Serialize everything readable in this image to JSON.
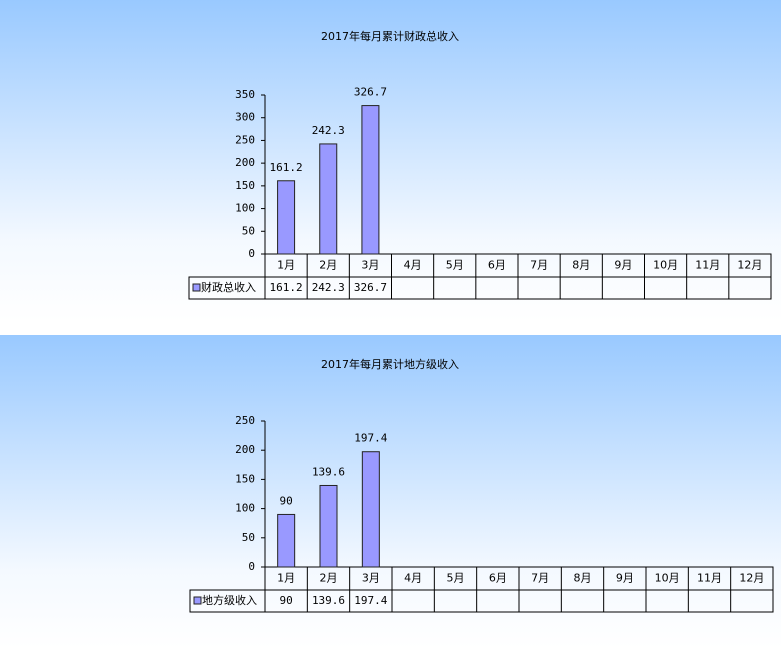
{
  "chart_data": [
    {
      "type": "bar",
      "title": "2017年每月累计财政总收入",
      "categories": [
        "1月",
        "2月",
        "3月",
        "4月",
        "5月",
        "6月",
        "7月",
        "8月",
        "9月",
        "10月",
        "11月",
        "12月"
      ],
      "series": [
        {
          "name": "财政总收入",
          "color": "#9999ff",
          "values": [
            161.2,
            242.3,
            326.7,
            null,
            null,
            null,
            null,
            null,
            null,
            null,
            null,
            null
          ]
        }
      ],
      "ylim": [
        0,
        350
      ],
      "yticks": [
        0,
        50,
        100,
        150,
        200,
        250,
        300,
        350
      ],
      "grid": false
    },
    {
      "type": "bar",
      "title": "2017年每月累计地方级收入",
      "categories": [
        "1月",
        "2月",
        "3月",
        "4月",
        "5月",
        "6月",
        "7月",
        "8月",
        "9月",
        "10月",
        "11月",
        "12月"
      ],
      "series": [
        {
          "name": "地方级收入",
          "color": "#9999ff",
          "values": [
            90,
            139.6,
            197.4,
            null,
            null,
            null,
            null,
            null,
            null,
            null,
            null,
            null
          ]
        }
      ],
      "ylim": [
        0,
        250
      ],
      "yticks": [
        0,
        50,
        100,
        150,
        200,
        250
      ],
      "grid": false
    }
  ]
}
